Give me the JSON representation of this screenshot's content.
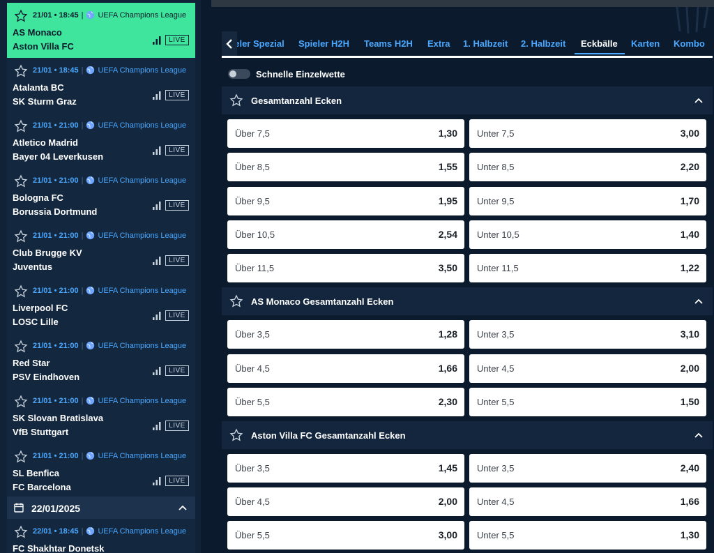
{
  "sidebar": {
    "matches": [
      {
        "time": "21/01 • 18:45",
        "competition": "UEFA Champions League",
        "home": "AS Monaco",
        "away": "Aston Villa FC",
        "live": "LIVE",
        "active": true
      },
      {
        "time": "21/01 • 18:45",
        "competition": "UEFA Champions League",
        "home": "Atalanta BC",
        "away": "SK Sturm Graz",
        "live": "LIVE"
      },
      {
        "time": "21/01 • 21:00",
        "competition": "UEFA Champions League",
        "home": "Atletico Madrid",
        "away": "Bayer 04 Leverkusen",
        "live": "LIVE"
      },
      {
        "time": "21/01 • 21:00",
        "competition": "UEFA Champions League",
        "home": "Bologna FC",
        "away": "Borussia Dortmund",
        "live": "LIVE"
      },
      {
        "time": "21/01 • 21:00",
        "competition": "UEFA Champions League",
        "home": "Club Brugge KV",
        "away": "Juventus",
        "live": "LIVE"
      },
      {
        "time": "21/01 • 21:00",
        "competition": "UEFA Champions League",
        "home": "Liverpool FC",
        "away": "LOSC Lille",
        "live": "LIVE"
      },
      {
        "time": "21/01 • 21:00",
        "competition": "UEFA Champions League",
        "home": "Red Star",
        "away": "PSV Eindhoven",
        "live": "LIVE"
      },
      {
        "time": "21/01 • 21:00",
        "competition": "UEFA Champions League",
        "home": "SK Slovan Bratislava",
        "away": "VfB Stuttgart",
        "live": "LIVE"
      },
      {
        "time": "21/01 • 21:00",
        "competition": "UEFA Champions League",
        "home": "SL Benfica",
        "away": "FC Barcelona",
        "live": "LIVE"
      },
      {
        "time": "22/01 • 18:45",
        "competition": "UEFA Champions League",
        "home": "FC Shakhtar Donetsk",
        "away": "",
        "live": ""
      }
    ],
    "date_group": "22/01/2025"
  },
  "tabs": [
    "Spieler Spezial",
    "Spieler H2H",
    "Teams H2H",
    "Extra",
    "1. Halbzeit",
    "2. Halbzeit",
    "Eckbälle",
    "Karten",
    "Kombo"
  ],
  "active_tab": "Eckbälle",
  "quick_bet_label": "Schnelle Einzelwette",
  "markets": [
    {
      "title": "Gesamtanzahl Ecken",
      "rows": [
        {
          "over": "Über 7,5",
          "over_odd": "1,30",
          "under": "Unter 7,5",
          "under_odd": "3,00"
        },
        {
          "over": "Über 8,5",
          "over_odd": "1,55",
          "under": "Unter 8,5",
          "under_odd": "2,20"
        },
        {
          "over": "Über 9,5",
          "over_odd": "1,95",
          "under": "Unter 9,5",
          "under_odd": "1,70"
        },
        {
          "over": "Über 10,5",
          "over_odd": "2,54",
          "under": "Unter 10,5",
          "under_odd": "1,40"
        },
        {
          "over": "Über 11,5",
          "over_odd": "3,50",
          "under": "Unter 11,5",
          "under_odd": "1,22"
        }
      ]
    },
    {
      "title": "AS Monaco Gesamtanzahl Ecken",
      "rows": [
        {
          "over": "Über 3,5",
          "over_odd": "1,28",
          "under": "Unter 3,5",
          "under_odd": "3,10"
        },
        {
          "over": "Über 4,5",
          "over_odd": "1,66",
          "under": "Unter 4,5",
          "under_odd": "2,00"
        },
        {
          "over": "Über 5,5",
          "over_odd": "2,30",
          "under": "Unter 5,5",
          "under_odd": "1,50"
        }
      ]
    },
    {
      "title": "Aston Villa FC Gesamtanzahl Ecken",
      "rows": [
        {
          "over": "Über 3,5",
          "over_odd": "1,45",
          "under": "Unter 3,5",
          "under_odd": "2,40"
        },
        {
          "over": "Über 4,5",
          "over_odd": "2,00",
          "under": "Unter 4,5",
          "under_odd": "1,66"
        },
        {
          "over": "Über 5,5",
          "over_odd": "3,00",
          "under": "Unter 5,5",
          "under_odd": "1,30"
        }
      ]
    }
  ],
  "colors": {
    "accent": "#3fe59c",
    "link": "#4aa8ff",
    "bg": "#0b1a2c"
  }
}
